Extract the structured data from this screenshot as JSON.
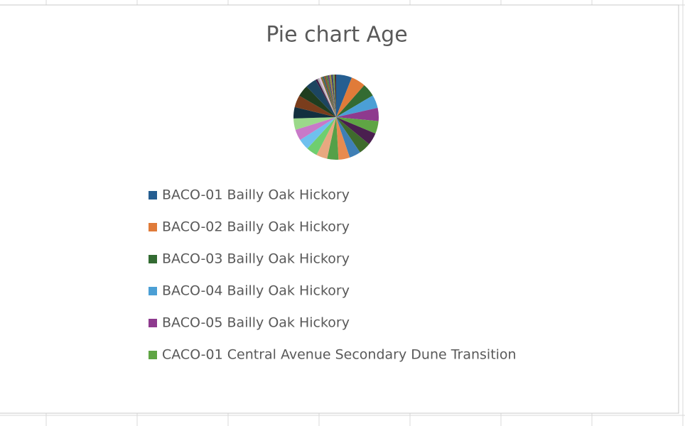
{
  "chart_data": {
    "type": "pie",
    "title": "Pie chart Age",
    "categories": [
      "BACO-01 Bailly Oak Hickory",
      "BACO-02 Bailly Oak Hickory",
      "BACO-03 Bailly Oak Hickory",
      "BACO-04 Bailly Oak Hickory",
      "BACO-05 Bailly Oak Hickory",
      "CACO-01 Central Avenue Secondary Dune Transition",
      null,
      null,
      null,
      null,
      null,
      null,
      null,
      null,
      null,
      null,
      null,
      null,
      null,
      null,
      null,
      null,
      null,
      null,
      null,
      null,
      null,
      null,
      null,
      null,
      null,
      null
    ],
    "values": [
      6,
      5.5,
      5,
      5,
      5,
      4.8,
      4.6,
      4.6,
      4.3,
      4.3,
      4.3,
      4.2,
      4.2,
      4.2,
      4.2,
      4.3,
      4.3,
      4.6,
      4.4,
      4.2,
      0.7,
      0.7,
      0.7,
      0.7,
      0.6,
      0.7,
      0.7,
      0.6,
      0.7,
      0.7,
      0.6,
      0.6
    ],
    "colors": [
      "#255e91",
      "#e07b39",
      "#336b32",
      "#4b9fd5",
      "#8e3a8e",
      "#5fa544",
      "#4a1f4f",
      "#3f6b2c",
      "#3f7fb5",
      "#e88b50",
      "#55a048",
      "#e8a880",
      "#6fce6f",
      "#6fc0ee",
      "#c879c8",
      "#9bd98a",
      "#13303f",
      "#7a3d1c",
      "#1f3d1f",
      "#1c4560",
      "#3d1842",
      "#a8a8a8",
      "#e0c0e0",
      "#7f6f2f",
      "#2f5f6f",
      "#8f4f2f",
      "#4f7f3f",
      "#5f3f7f",
      "#9f8f3f",
      "#3f3f6f",
      "#6f9f4f",
      "#4f2f2f"
    ]
  }
}
